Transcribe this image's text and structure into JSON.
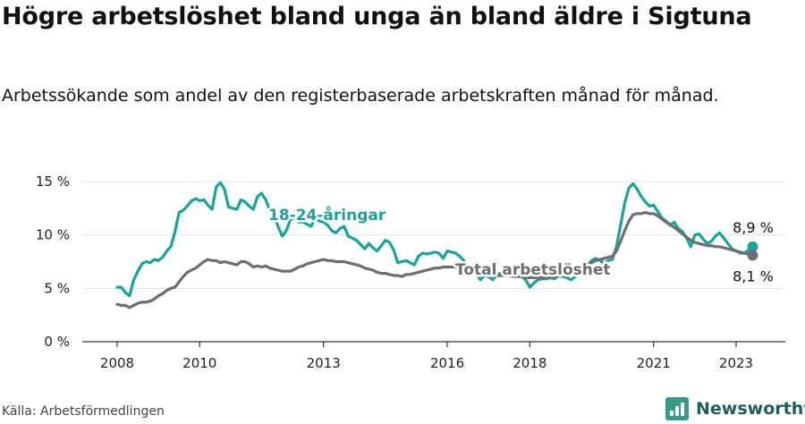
{
  "header": {
    "title": "Högre arbetslöshet bland unga än bland äldre i Sigtuna",
    "subtitle": "Arbetssökande som andel av den registerbaserade arbetskraften månad för månad."
  },
  "footer": {
    "source": "Källa: Arbetsförmedlingen",
    "brand": "Newsworthy"
  },
  "colors": {
    "youth": "#1aa39a",
    "total": "#6e6e72",
    "grid": "#e3e3e3",
    "axis": "#333333",
    "brand": "#3a9a85"
  },
  "chart_data": {
    "type": "line",
    "title": "Högre arbetslöshet bland unga än bland äldre i Sigtuna",
    "xlabel": "",
    "ylabel": "",
    "xlim": [
      2007.5,
      2024.0
    ],
    "ylim": [
      0,
      15.5
    ],
    "yticks": [
      0,
      5,
      10,
      15
    ],
    "ytick_labels": [
      "0 %",
      "5 %",
      "10 %",
      "15 %"
    ],
    "xticks": [
      2008,
      2010,
      2013,
      2016,
      2018,
      2021,
      2023
    ],
    "xtick_labels": [
      "2008",
      "2010",
      "2013",
      "2016",
      "2018",
      "2021",
      "2023"
    ],
    "grid": true,
    "series": [
      {
        "name": "18-24-åringar",
        "label": "18-24-åringar",
        "color": "#1aa39a",
        "end_label": "8,9 %",
        "x": [
          2008.0,
          2008.1,
          2008.2,
          2008.3,
          2008.4,
          2008.5,
          2008.6,
          2008.7,
          2008.8,
          2008.9,
          2009.0,
          2009.1,
          2009.2,
          2009.3,
          2009.4,
          2009.5,
          2009.6,
          2009.7,
          2009.8,
          2009.9,
          2010.0,
          2010.1,
          2010.2,
          2010.3,
          2010.4,
          2010.5,
          2010.6,
          2010.7,
          2010.8,
          2010.9,
          2011.0,
          2011.1,
          2011.2,
          2011.3,
          2011.4,
          2011.5,
          2011.6,
          2011.7,
          2011.8,
          2011.9,
          2012.0,
          2012.1,
          2012.2,
          2012.3,
          2012.4,
          2012.5,
          2012.6,
          2012.7,
          2012.8,
          2012.9,
          2013.0,
          2013.1,
          2013.2,
          2013.3,
          2013.4,
          2013.5,
          2013.6,
          2013.7,
          2013.8,
          2013.9,
          2014.0,
          2014.1,
          2014.2,
          2014.3,
          2014.4,
          2014.5,
          2014.6,
          2014.7,
          2014.8,
          2014.9,
          2015.0,
          2015.1,
          2015.2,
          2015.3,
          2015.4,
          2015.5,
          2015.6,
          2015.7,
          2015.8,
          2015.9,
          2016.0,
          2016.1,
          2016.2,
          2016.3,
          2016.4,
          2016.5,
          2016.6,
          2016.7,
          2016.8,
          2016.9,
          2017.0,
          2017.1,
          2017.2,
          2017.3,
          2017.4,
          2017.5,
          2017.6,
          2017.7,
          2017.8,
          2017.9,
          2018.0,
          2018.1,
          2018.2,
          2018.3,
          2018.4,
          2018.5,
          2018.6,
          2018.7,
          2018.8,
          2018.9,
          2019.0,
          2019.1,
          2019.2,
          2019.3,
          2019.4,
          2019.5,
          2019.6,
          2019.7,
          2019.8,
          2019.9,
          2020.0,
          2020.1,
          2020.2,
          2020.3,
          2020.4,
          2020.5,
          2020.6,
          2020.7,
          2020.8,
          2020.9,
          2021.0,
          2021.1,
          2021.2,
          2021.3,
          2021.4,
          2021.5,
          2021.6,
          2021.7,
          2021.8,
          2021.9,
          2022.0,
          2022.1,
          2022.2,
          2022.3,
          2022.4,
          2022.5,
          2022.6,
          2022.7,
          2022.8,
          2022.9,
          2023.0,
          2023.1,
          2023.2,
          2023.3,
          2023.4
        ],
        "values": [
          5.1,
          5.1,
          4.6,
          4.3,
          5.8,
          6.6,
          7.3,
          7.5,
          7.4,
          7.7,
          7.6,
          7.9,
          8.5,
          8.9,
          10.3,
          12.1,
          12.3,
          12.7,
          13.2,
          13.4,
          13.2,
          13.3,
          12.8,
          12.4,
          14.5,
          14.9,
          14.3,
          12.6,
          12.5,
          12.4,
          13.3,
          13.1,
          12.7,
          12.4,
          13.6,
          13.9,
          13.3,
          12.3,
          11.8,
          10.8,
          9.9,
          10.4,
          11.5,
          11.6,
          11.2,
          11.2,
          11.0,
          10.8,
          11.6,
          11.3,
          11.2,
          10.9,
          10.4,
          10.2,
          10.6,
          10.8,
          9.9,
          9.7,
          9.5,
          9.1,
          8.7,
          9.2,
          8.8,
          8.5,
          9.0,
          9.5,
          9.3,
          8.6,
          7.4,
          7.5,
          7.6,
          7.4,
          7.2,
          8.0,
          8.3,
          8.2,
          8.3,
          8.4,
          8.3,
          7.8,
          8.5,
          8.4,
          8.3,
          8.0,
          7.6,
          7.0,
          6.4,
          6.4,
          5.8,
          6.2,
          6.1,
          5.8,
          6.3,
          6.4,
          6.6,
          6.9,
          6.7,
          6.2,
          6.1,
          5.8,
          5.1,
          5.5,
          5.8,
          5.9,
          5.9,
          6.0,
          5.9,
          6.2,
          6.1,
          6.0,
          5.8,
          6.1,
          6.4,
          6.8,
          7.2,
          7.6,
          7.8,
          7.6,
          7.3,
          7.6,
          7.7,
          8.9,
          10.9,
          13.0,
          14.4,
          14.8,
          14.3,
          13.6,
          13.1,
          12.7,
          12.8,
          12.2,
          11.6,
          11.3,
          10.9,
          11.2,
          10.6,
          10.3,
          9.7,
          8.9,
          10.0,
          10.1,
          9.6,
          9.2,
          9.4,
          9.9,
          10.2,
          9.7,
          9.2,
          8.7,
          8.5,
          8.3,
          8.3,
          8.6,
          8.9
        ]
      },
      {
        "name": "Total arbetslöshet",
        "label": "Total arbetslöshet",
        "color": "#6e6e72",
        "end_label": "8,1 %",
        "x": [
          2008.0,
          2008.1,
          2008.2,
          2008.3,
          2008.4,
          2008.5,
          2008.6,
          2008.7,
          2008.8,
          2008.9,
          2009.0,
          2009.1,
          2009.2,
          2009.3,
          2009.4,
          2009.5,
          2009.6,
          2009.7,
          2009.8,
          2009.9,
          2010.0,
          2010.1,
          2010.2,
          2010.3,
          2010.4,
          2010.5,
          2010.6,
          2010.7,
          2010.8,
          2010.9,
          2011.0,
          2011.1,
          2011.2,
          2011.3,
          2011.4,
          2011.5,
          2011.6,
          2011.7,
          2011.8,
          2011.9,
          2012.0,
          2012.1,
          2012.2,
          2012.3,
          2012.4,
          2012.5,
          2012.6,
          2012.7,
          2012.8,
          2012.9,
          2013.0,
          2013.1,
          2013.2,
          2013.3,
          2013.4,
          2013.5,
          2013.6,
          2013.7,
          2013.8,
          2013.9,
          2014.0,
          2014.1,
          2014.2,
          2014.3,
          2014.4,
          2014.5,
          2014.6,
          2014.7,
          2014.8,
          2014.9,
          2015.0,
          2015.1,
          2015.2,
          2015.3,
          2015.4,
          2015.5,
          2015.6,
          2015.7,
          2015.8,
          2015.9,
          2016.0,
          2016.1,
          2016.2,
          2016.3,
          2016.4,
          2016.5,
          2016.6,
          2016.7,
          2016.8,
          2016.9,
          2017.0,
          2017.1,
          2017.2,
          2017.3,
          2017.4,
          2017.5,
          2017.6,
          2017.7,
          2017.8,
          2017.9,
          2018.0,
          2018.1,
          2018.2,
          2018.3,
          2018.4,
          2018.5,
          2018.6,
          2018.7,
          2018.8,
          2018.9,
          2019.0,
          2019.1,
          2019.2,
          2019.3,
          2019.4,
          2019.5,
          2019.6,
          2019.7,
          2019.8,
          2019.9,
          2020.0,
          2020.1,
          2020.2,
          2020.3,
          2020.4,
          2020.5,
          2020.6,
          2020.7,
          2020.8,
          2020.9,
          2021.0,
          2021.1,
          2021.2,
          2021.3,
          2021.4,
          2021.5,
          2021.6,
          2021.7,
          2021.8,
          2021.9,
          2022.0,
          2022.1,
          2022.2,
          2022.3,
          2022.4,
          2022.5,
          2022.6,
          2022.7,
          2022.8,
          2022.9,
          2023.0,
          2023.1,
          2023.2,
          2023.3,
          2023.4
        ],
        "values": [
          3.5,
          3.4,
          3.4,
          3.2,
          3.4,
          3.6,
          3.7,
          3.7,
          3.8,
          4.0,
          4.3,
          4.5,
          4.8,
          5.0,
          5.1,
          5.6,
          6.1,
          6.5,
          6.7,
          6.9,
          7.2,
          7.5,
          7.7,
          7.6,
          7.6,
          7.4,
          7.5,
          7.4,
          7.3,
          7.2,
          7.5,
          7.5,
          7.3,
          7.0,
          7.1,
          7.0,
          7.1,
          6.9,
          6.8,
          6.7,
          6.6,
          6.6,
          6.6,
          6.8,
          7.0,
          7.1,
          7.3,
          7.4,
          7.5,
          7.6,
          7.7,
          7.6,
          7.6,
          7.5,
          7.5,
          7.5,
          7.4,
          7.3,
          7.2,
          7.1,
          6.9,
          6.8,
          6.7,
          6.5,
          6.4,
          6.4,
          6.3,
          6.2,
          6.2,
          6.1,
          6.3,
          6.3,
          6.4,
          6.5,
          6.6,
          6.7,
          6.8,
          6.9,
          6.9,
          7.0,
          7.0,
          7.0,
          7.0,
          6.9,
          6.8,
          6.7,
          6.6,
          6.5,
          6.4,
          6.3,
          6.3,
          6.3,
          6.2,
          6.2,
          6.2,
          6.2,
          6.1,
          6.1,
          6.1,
          6.0,
          6.0,
          6.0,
          6.0,
          6.0,
          6.0,
          6.0,
          6.1,
          6.1,
          6.2,
          6.3,
          6.4,
          6.6,
          6.8,
          7.0,
          7.2,
          7.4,
          7.6,
          7.7,
          7.8,
          7.9,
          8.0,
          8.5,
          9.4,
          10.4,
          11.3,
          11.9,
          12.0,
          12.0,
          12.1,
          12.0,
          12.0,
          11.8,
          11.5,
          11.2,
          11.0,
          10.7,
          10.4,
          10.1,
          9.8,
          9.5,
          9.3,
          9.2,
          9.1,
          9.0,
          9.0,
          8.9,
          8.9,
          8.8,
          8.7,
          8.6,
          8.5,
          8.4,
          8.3,
          8.2,
          8.1
        ]
      }
    ]
  }
}
